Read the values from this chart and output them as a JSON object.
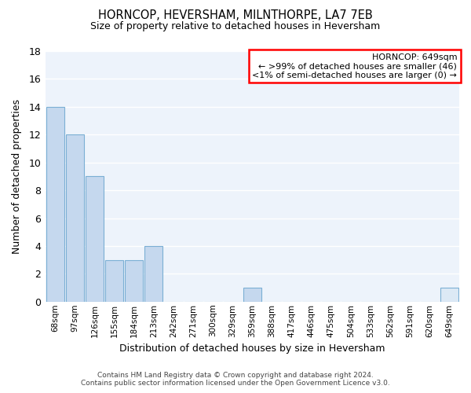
{
  "title": "HORNCOP, HEVERSHAM, MILNTHORPE, LA7 7EB",
  "subtitle": "Size of property relative to detached houses in Heversham",
  "xlabel": "Distribution of detached houses by size in Heversham",
  "ylabel": "Number of detached properties",
  "categories": [
    "68sqm",
    "97sqm",
    "126sqm",
    "155sqm",
    "184sqm",
    "213sqm",
    "242sqm",
    "271sqm",
    "300sqm",
    "329sqm",
    "359sqm",
    "388sqm",
    "417sqm",
    "446sqm",
    "475sqm",
    "504sqm",
    "533sqm",
    "562sqm",
    "591sqm",
    "620sqm",
    "649sqm"
  ],
  "values": [
    14,
    12,
    9,
    3,
    3,
    4,
    0,
    0,
    0,
    0,
    1,
    0,
    0,
    0,
    0,
    0,
    0,
    0,
    0,
    0,
    1
  ],
  "bar_color": "#c5d8ee",
  "bar_edge_color": "#7bafd4",
  "highlight_index": 20,
  "highlight_bar_color": "#dce9f5",
  "highlight_bar_edge": "#7bafd4",
  "ylim": [
    0,
    18
  ],
  "yticks": [
    0,
    2,
    4,
    6,
    8,
    10,
    12,
    14,
    16,
    18
  ],
  "legend_title": "HORNCOP: 649sqm",
  "legend_line1": "← >99% of detached houses are smaller (46)",
  "legend_line2": "<1% of semi-detached houses are larger (0) →",
  "plot_bg_color": "#edf3fb",
  "grid_color": "#ffffff",
  "footer_line1": "Contains HM Land Registry data © Crown copyright and database right 2024.",
  "footer_line2": "Contains public sector information licensed under the Open Government Licence v3.0."
}
